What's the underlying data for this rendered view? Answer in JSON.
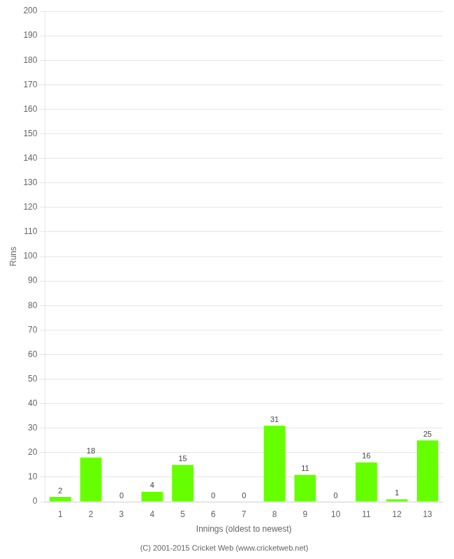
{
  "chart_data": {
    "type": "bar",
    "categories": [
      1,
      2,
      3,
      4,
      5,
      6,
      7,
      8,
      9,
      10,
      11,
      12,
      13
    ],
    "values": [
      2,
      18,
      0,
      4,
      15,
      0,
      0,
      31,
      11,
      0,
      16,
      1,
      25
    ],
    "color": "#66ff00",
    "x_label": "Innings (oldest to newest)",
    "y_label": "Runs",
    "ylim": [
      0,
      200
    ],
    "yticks": [
      0,
      10,
      20,
      30,
      40,
      50,
      60,
      70,
      80,
      90,
      100,
      110,
      120,
      130,
      140,
      150,
      160,
      170,
      180,
      190,
      200
    ],
    "grid": true,
    "data_labels": true,
    "annotations": [
      "(C) 2001-2015 Cricket Web (www.cricketweb.net)"
    ]
  }
}
